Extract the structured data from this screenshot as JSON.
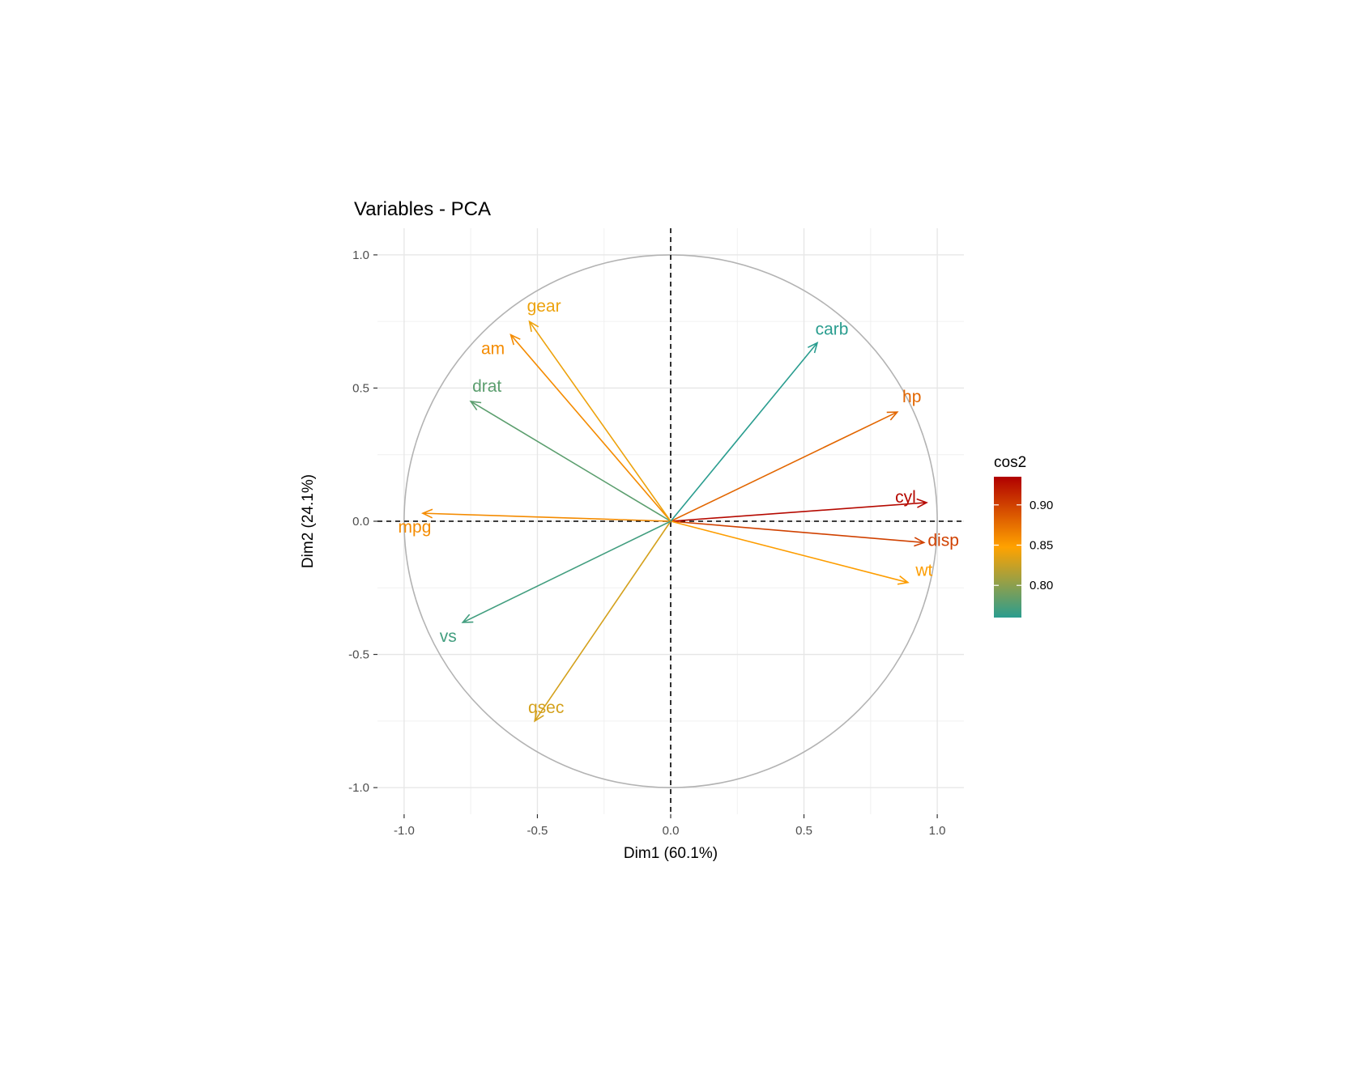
{
  "chart_data": {
    "type": "scatter",
    "subtype": "pca-variable-correlation-circle",
    "title": "Variables - PCA",
    "xlabel": "Dim1 (60.1%)",
    "ylabel": "Dim2 (24.1%)",
    "xlim": [
      -1.1,
      1.1
    ],
    "ylim": [
      -1.1,
      1.1
    ],
    "x_ticks": [
      -1.0,
      -0.5,
      0.0,
      0.5,
      1.0
    ],
    "x_tick_labels": [
      "-1.0",
      "-0.5",
      "0.0",
      "0.5",
      "1.0"
    ],
    "y_ticks": [
      -1.0,
      -0.5,
      0.0,
      0.5,
      1.0
    ],
    "y_tick_labels": [
      "-1.0",
      "-0.5",
      "0.0",
      "0.5",
      "1.0"
    ],
    "grid": true,
    "unit_circle": true,
    "reference_lines": {
      "x": 0,
      "y": 0,
      "style": "dashed"
    },
    "color_scale": {
      "name": "cos2",
      "min": 0.76,
      "max": 0.935,
      "low_color": "#2a9d8f",
      "mid_color": "#ffa200",
      "high_color": "#b00000",
      "ticks": [
        0.8,
        0.85,
        0.9
      ],
      "tick_labels": [
        "0.80",
        "0.85",
        "0.90"
      ],
      "legend_position": "right"
    },
    "variables": [
      {
        "name": "mpg",
        "x": -0.93,
        "y": 0.03,
        "cos2": 0.86
      },
      {
        "name": "cyl",
        "x": 0.96,
        "y": 0.07,
        "cos2": 0.93
      },
      {
        "name": "disp",
        "x": 0.95,
        "y": -0.08,
        "cos2": 0.9
      },
      {
        "name": "hp",
        "x": 0.85,
        "y": 0.41,
        "cos2": 0.88
      },
      {
        "name": "drat",
        "x": -0.75,
        "y": 0.45,
        "cos2": 0.78
      },
      {
        "name": "wt",
        "x": 0.89,
        "y": -0.23,
        "cos2": 0.85
      },
      {
        "name": "qsec",
        "x": -0.51,
        "y": -0.75,
        "cos2": 0.83
      },
      {
        "name": "vs",
        "x": -0.78,
        "y": -0.38,
        "cos2": 0.77
      },
      {
        "name": "am",
        "x": -0.6,
        "y": 0.7,
        "cos2": 0.86
      },
      {
        "name": "gear",
        "x": -0.53,
        "y": 0.75,
        "cos2": 0.84
      },
      {
        "name": "carb",
        "x": 0.55,
        "y": 0.67,
        "cos2": 0.76
      }
    ]
  }
}
